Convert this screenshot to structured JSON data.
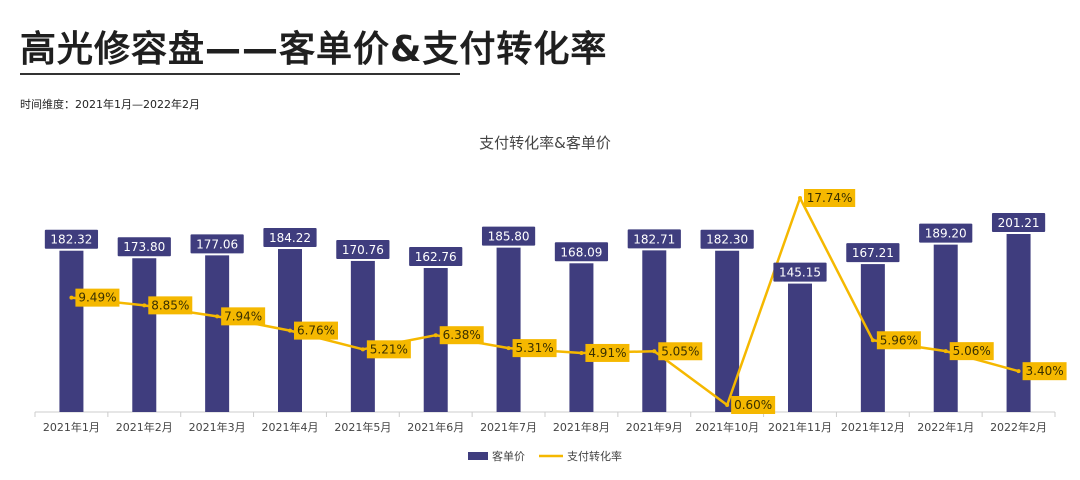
{
  "page": {
    "title": "高光修容盘——客单价&支付转化率",
    "time_range": "时间维度：2021年1月—2022年2月"
  },
  "colors": {
    "bar": "#3f3d7e",
    "line": "#f5b800",
    "bar_label_text": "#ffffff",
    "line_label_text": "#3a3000",
    "axis": "#cccccc",
    "text": "#444444"
  },
  "chart_data": {
    "type": "bar+line",
    "title": "支付转化率&客单价",
    "categories": [
      "2021年1月",
      "2021年2月",
      "2021年3月",
      "2021年4月",
      "2021年5月",
      "2021年6月",
      "2021年7月",
      "2021年8月",
      "2021年9月",
      "2021年10月",
      "2021年11月",
      "2021年12月",
      "2022年1月",
      "2022年2月"
    ],
    "series": [
      {
        "name": "客单价",
        "type": "bar",
        "values": [
          182.32,
          173.8,
          177.06,
          184.22,
          170.76,
          162.76,
          185.8,
          168.09,
          182.71,
          182.3,
          145.15,
          167.21,
          189.2,
          201.21
        ],
        "labels": [
          "182.32",
          "173.80",
          "177.06",
          "184.22",
          "170.76",
          "162.76",
          "185.80",
          "168.09",
          "182.71",
          "182.30",
          "145.15",
          "167.21",
          "189.20",
          "201.21"
        ]
      },
      {
        "name": "支付转化率",
        "type": "line",
        "values": [
          9.49,
          8.85,
          7.94,
          6.76,
          5.21,
          6.38,
          5.31,
          4.91,
          5.05,
          0.6,
          17.74,
          5.96,
          5.06,
          3.4
        ],
        "labels": [
          "9.49%",
          "8.85%",
          "7.94%",
          "6.76%",
          "5.21%",
          "6.38%",
          "5.31%",
          "4.91%",
          "5.05%",
          "0.60%",
          "17.74%",
          "5.96%",
          "5.06%",
          "3.40%"
        ]
      }
    ],
    "legend": {
      "position": "bottom-center"
    }
  }
}
